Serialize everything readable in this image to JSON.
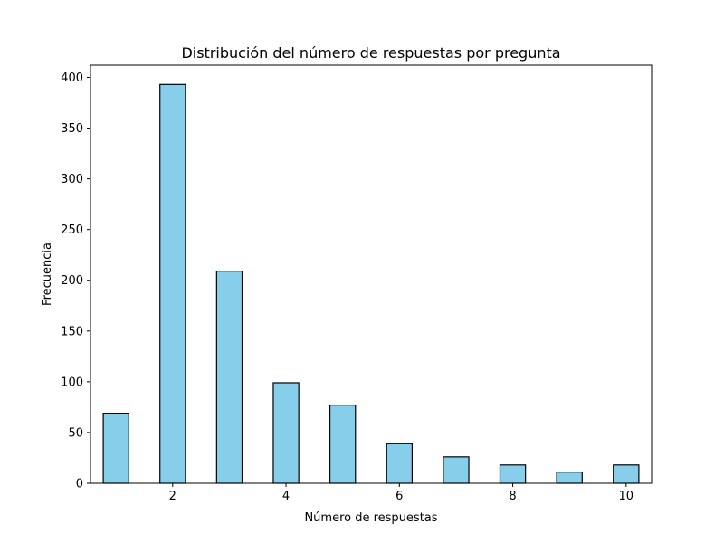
{
  "chart_data": {
    "type": "bar",
    "title": "Distribución del número de respuestas por pregunta",
    "xlabel": "Número de respuestas",
    "ylabel": "Frecuencia",
    "x": [
      1,
      2,
      3,
      4,
      5,
      6,
      7,
      8,
      9,
      10
    ],
    "values": [
      69,
      393,
      209,
      99,
      77,
      39,
      26,
      18,
      11,
      18
    ],
    "bar_width": 0.45,
    "xlim": [
      0.55,
      10.45
    ],
    "ylim": [
      0,
      412
    ],
    "xticks": [
      2,
      4,
      6,
      8,
      10
    ],
    "yticks": [
      0,
      50,
      100,
      150,
      200,
      250,
      300,
      350,
      400
    ],
    "bar_color": "#87ceeb",
    "edge_color": "#000000",
    "grid": false,
    "legend": null
  }
}
